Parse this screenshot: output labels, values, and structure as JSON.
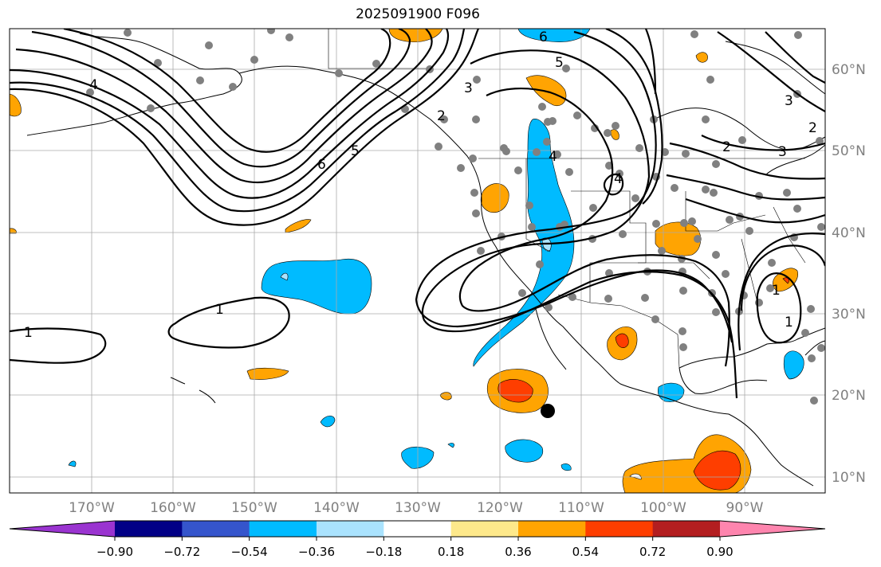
{
  "title": "2025091900 F096",
  "lon_labels": [
    "170°W",
    "160°W",
    "150°W",
    "140°W",
    "130°W",
    "120°W",
    "110°W",
    "100°W",
    "90°W"
  ],
  "lat_labels": [
    "60°N",
    "50°N",
    "40°N",
    "30°N",
    "20°N",
    "10°N"
  ],
  "colorbar": {
    "colors": [
      "#9a34d0",
      "#020086",
      "#3555cc",
      "#00bbff",
      "#aae3fe",
      "#ffffff",
      "#fee98b",
      "#ffa402",
      "#fe3e00",
      "#b31e20",
      "#fe85ae"
    ],
    "tick_labels": [
      "−0.90",
      "−0.72",
      "−0.54",
      "−0.36",
      "−0.18",
      "0.18",
      "0.36",
      "0.54",
      "0.72",
      "0.90"
    ]
  },
  "contour_labels": [
    "1",
    "1",
    "2",
    "3",
    "4",
    "5",
    "6",
    "2",
    "3",
    "4",
    "5",
    "6",
    "2",
    "3",
    "4",
    "1",
    "1"
  ]
}
